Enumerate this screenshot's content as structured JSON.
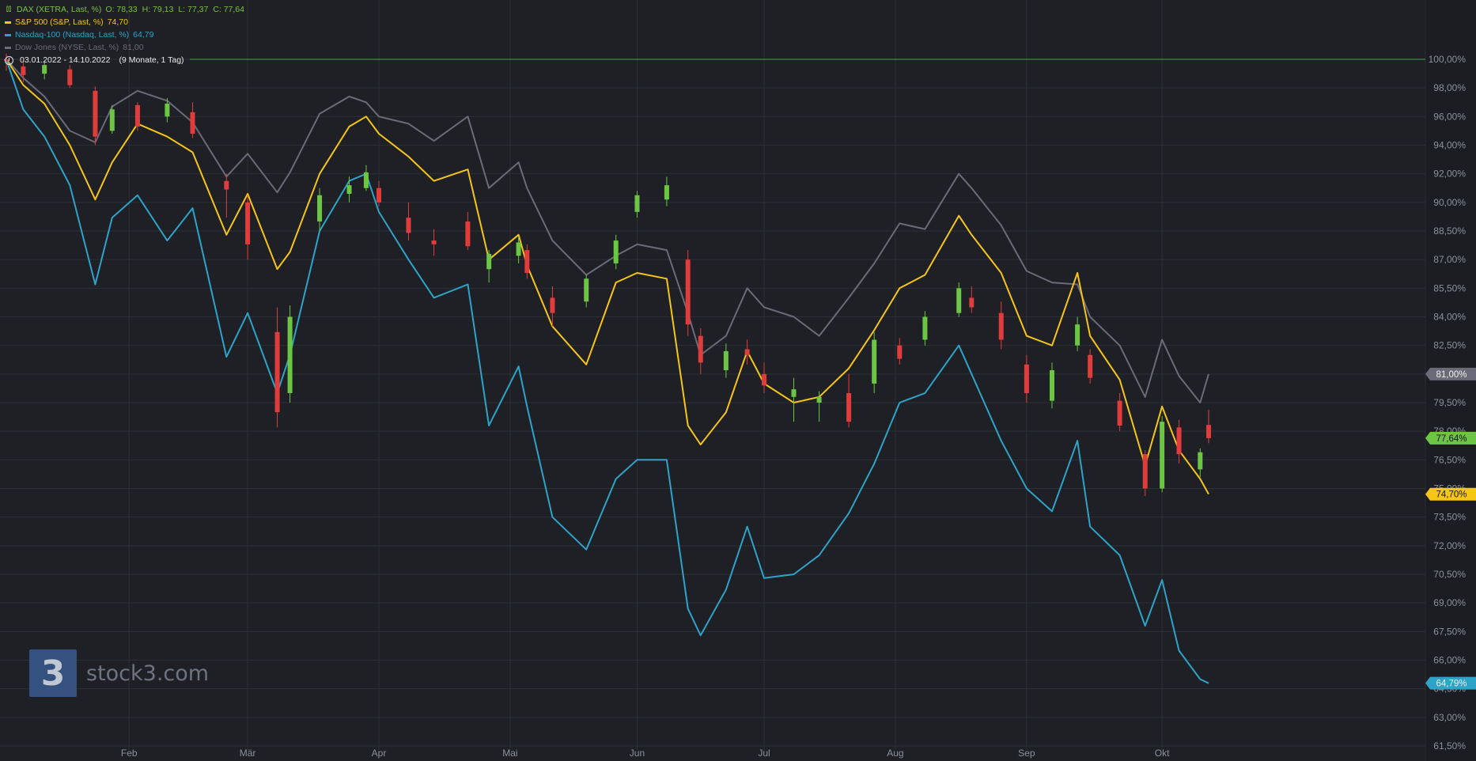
{
  "legend": [
    {
      "label": "DAX (XETRA, Last, %)",
      "values": [
        "O: 78,33",
        "H: 79,13",
        "L: 77,37",
        "C: 77,64"
      ],
      "color": "#7ac143",
      "icon": "candlestick-icon"
    },
    {
      "label": "S&P 500 (S&P, Last, %)",
      "values": [
        "74,70"
      ],
      "color": "#f5c518",
      "icon": "line-icon"
    },
    {
      "label": "Nasdaq-100 (Nasdaq, Last, %)",
      "values": [
        "64,79"
      ],
      "color": "#2ea3c8",
      "icon": "line-icon"
    },
    {
      "label": "Dow Jones (NYSE, Last, %)",
      "values": [
        "81,00"
      ],
      "color": "#6a6a78",
      "icon": "line-icon"
    }
  ],
  "date_range": {
    "text": "03.01.2022 - 14.10.2022",
    "duration": "(9 Monate, 1 Tag)",
    "icon": "clock-icon"
  },
  "watermark": {
    "logo_glyph": "3",
    "text": "stock3.com"
  },
  "colors": {
    "background": "#1e2026",
    "axis_panel": "#1b1d22",
    "grid": "#2c2f36",
    "up": "#6cc644",
    "down": "#e03c3c",
    "reference": "#3d8c3d"
  },
  "chart_data": {
    "type": "line",
    "title": "",
    "xlabel": "",
    "ylabel": "",
    "x_range": [
      "2022-01-03",
      "2022-10-14"
    ],
    "ylim": [
      61.5,
      100.0
    ],
    "y_ticks": [
      "100,00%",
      "98,00%",
      "96,00%",
      "94,00%",
      "92,00%",
      "90,00%",
      "88,50%",
      "87,00%",
      "85,50%",
      "84,00%",
      "82,50%",
      "81,00%",
      "79,50%",
      "78,00%",
      "76,50%",
      "75,00%",
      "73,50%",
      "72,00%",
      "70,50%",
      "69,00%",
      "67,50%",
      "66,00%",
      "64,50%",
      "63,00%",
      "61,50%"
    ],
    "y_tick_values": [
      100,
      98,
      96,
      94,
      92,
      90,
      88.5,
      87,
      85.5,
      84,
      82.5,
      81,
      79.5,
      78,
      76.5,
      75,
      73.5,
      72,
      70.5,
      69,
      67.5,
      66,
      64.5,
      63,
      61.5
    ],
    "x_ticks": [
      {
        "label": "Feb",
        "date": "2022-02-01"
      },
      {
        "label": "Mär",
        "date": "2022-03-01"
      },
      {
        "label": "Apr",
        "date": "2022-04-01"
      },
      {
        "label": "Mai",
        "date": "2022-05-02"
      },
      {
        "label": "Jun",
        "date": "2022-06-01"
      },
      {
        "label": "Jul",
        "date": "2022-07-01"
      },
      {
        "label": "Aug",
        "date": "2022-08-01"
      },
      {
        "label": "Sep",
        "date": "2022-09-01"
      },
      {
        "label": "Okt",
        "date": "2022-10-03"
      }
    ],
    "reference_line": 100.0,
    "grid": true,
    "last_value_badges": [
      {
        "series": "Dow Jones",
        "label": "81,00%",
        "value": 81.0,
        "color": "#6a6a78"
      },
      {
        "series": "DAX",
        "label": "77,64%",
        "value": 77.64,
        "color": "#6cc644"
      },
      {
        "series": "S&P 500",
        "label": "74,70%",
        "value": 74.7,
        "color": "#f5c518"
      },
      {
        "series": "Nasdaq-100",
        "label": "64,79%",
        "value": 64.79,
        "color": "#2ea3c8"
      }
    ],
    "series": [
      {
        "name": "Dow Jones",
        "kind": "line",
        "color": "#6a6a78",
        "x": [
          "2022-01-03",
          "2022-01-07",
          "2022-01-12",
          "2022-01-18",
          "2022-01-24",
          "2022-01-28",
          "2022-02-03",
          "2022-02-10",
          "2022-02-16",
          "2022-02-24",
          "2022-03-01",
          "2022-03-08",
          "2022-03-11",
          "2022-03-18",
          "2022-03-25",
          "2022-03-29",
          "2022-04-01",
          "2022-04-08",
          "2022-04-14",
          "2022-04-22",
          "2022-04-27",
          "2022-05-04",
          "2022-05-06",
          "2022-05-12",
          "2022-05-20",
          "2022-05-27",
          "2022-06-01",
          "2022-06-08",
          "2022-06-13",
          "2022-06-16",
          "2022-06-22",
          "2022-06-27",
          "2022-07-01",
          "2022-07-08",
          "2022-07-14",
          "2022-07-21",
          "2022-07-27",
          "2022-08-02",
          "2022-08-08",
          "2022-08-16",
          "2022-08-19",
          "2022-08-26",
          "2022-09-01",
          "2022-09-07",
          "2022-09-13",
          "2022-09-16",
          "2022-09-23",
          "2022-09-29",
          "2022-10-03",
          "2022-10-07",
          "2022-10-12",
          "2022-10-14"
        ],
        "values": [
          100.0,
          98.7,
          97.4,
          95.0,
          94.2,
          96.7,
          97.8,
          97.1,
          95.6,
          91.8,
          93.4,
          90.7,
          92.1,
          96.2,
          97.4,
          97.0,
          96.0,
          95.5,
          94.3,
          96.0,
          91.0,
          92.8,
          91.0,
          88.0,
          86.2,
          87.2,
          87.8,
          87.5,
          84.2,
          82.0,
          83.0,
          85.5,
          84.5,
          84.0,
          83.0,
          85.0,
          86.8,
          88.9,
          88.6,
          92.0,
          91.0,
          88.8,
          86.4,
          85.8,
          85.7,
          84.0,
          82.5,
          79.8,
          82.8,
          80.9,
          79.5,
          81.0
        ]
      },
      {
        "name": "S&P 500",
        "kind": "line",
        "color": "#f5c518",
        "x": [
          "2022-01-03",
          "2022-01-07",
          "2022-01-12",
          "2022-01-18",
          "2022-01-24",
          "2022-01-28",
          "2022-02-03",
          "2022-02-10",
          "2022-02-16",
          "2022-02-24",
          "2022-03-01",
          "2022-03-08",
          "2022-03-11",
          "2022-03-18",
          "2022-03-25",
          "2022-03-29",
          "2022-04-01",
          "2022-04-08",
          "2022-04-14",
          "2022-04-22",
          "2022-04-27",
          "2022-05-04",
          "2022-05-06",
          "2022-05-12",
          "2022-05-20",
          "2022-05-27",
          "2022-06-01",
          "2022-06-08",
          "2022-06-13",
          "2022-06-16",
          "2022-06-22",
          "2022-06-27",
          "2022-07-01",
          "2022-07-08",
          "2022-07-14",
          "2022-07-21",
          "2022-07-27",
          "2022-08-02",
          "2022-08-08",
          "2022-08-16",
          "2022-08-19",
          "2022-08-26",
          "2022-09-01",
          "2022-09-07",
          "2022-09-13",
          "2022-09-16",
          "2022-09-23",
          "2022-09-29",
          "2022-10-03",
          "2022-10-07",
          "2022-10-12",
          "2022-10-14"
        ],
        "values": [
          100.0,
          98.2,
          96.9,
          94.0,
          90.2,
          92.8,
          95.5,
          94.6,
          93.5,
          88.3,
          90.6,
          86.5,
          87.4,
          92.0,
          95.3,
          96.0,
          94.8,
          93.2,
          91.5,
          92.3,
          87.0,
          88.3,
          86.7,
          83.5,
          81.5,
          85.8,
          86.3,
          86.0,
          78.3,
          77.3,
          79.0,
          82.2,
          80.5,
          79.5,
          79.8,
          81.3,
          83.3,
          85.5,
          86.2,
          89.3,
          88.3,
          86.3,
          83.0,
          82.5,
          86.3,
          83.0,
          80.7,
          76.2,
          79.3,
          77.0,
          75.5,
          74.7
        ]
      },
      {
        "name": "Nasdaq-100",
        "kind": "line",
        "color": "#2ea3c8",
        "x": [
          "2022-01-03",
          "2022-01-07",
          "2022-01-12",
          "2022-01-18",
          "2022-01-24",
          "2022-01-28",
          "2022-02-03",
          "2022-02-10",
          "2022-02-16",
          "2022-02-24",
          "2022-03-01",
          "2022-03-08",
          "2022-03-11",
          "2022-03-18",
          "2022-03-25",
          "2022-03-29",
          "2022-04-01",
          "2022-04-08",
          "2022-04-14",
          "2022-04-22",
          "2022-04-27",
          "2022-05-04",
          "2022-05-06",
          "2022-05-12",
          "2022-05-20",
          "2022-05-27",
          "2022-06-01",
          "2022-06-08",
          "2022-06-13",
          "2022-06-16",
          "2022-06-22",
          "2022-06-27",
          "2022-07-01",
          "2022-07-08",
          "2022-07-14",
          "2022-07-21",
          "2022-07-27",
          "2022-08-02",
          "2022-08-08",
          "2022-08-16",
          "2022-08-19",
          "2022-08-26",
          "2022-09-01",
          "2022-09-07",
          "2022-09-13",
          "2022-09-16",
          "2022-09-23",
          "2022-09-29",
          "2022-10-03",
          "2022-10-07",
          "2022-10-12",
          "2022-10-14"
        ],
        "values": [
          100.0,
          96.5,
          94.6,
          91.2,
          85.7,
          89.2,
          90.5,
          88.0,
          89.7,
          81.9,
          84.2,
          80.0,
          82.0,
          88.5,
          91.5,
          92.0,
          89.5,
          87.0,
          85.0,
          85.7,
          78.3,
          81.4,
          79.3,
          73.5,
          71.8,
          75.5,
          76.5,
          76.5,
          68.7,
          67.3,
          69.7,
          73.0,
          70.3,
          70.5,
          71.5,
          73.7,
          76.3,
          79.5,
          80.0,
          82.5,
          81.0,
          77.5,
          75.0,
          73.8,
          77.5,
          73.0,
          71.5,
          67.8,
          70.2,
          66.5,
          65.0,
          64.79
        ]
      },
      {
        "name": "DAX",
        "kind": "candlestick",
        "up_color": "#6cc644",
        "down_color": "#e03c3c",
        "candles": [
          {
            "x": "2022-01-03",
            "o": 100.0,
            "h": 100.4,
            "l": 99.2,
            "c": 99.9
          },
          {
            "x": "2022-01-07",
            "o": 99.5,
            "h": 99.9,
            "l": 98.4,
            "c": 98.9
          },
          {
            "x": "2022-01-12",
            "o": 99.0,
            "h": 99.9,
            "l": 98.6,
            "c": 99.6
          },
          {
            "x": "2022-01-18",
            "o": 99.3,
            "h": 99.6,
            "l": 98.0,
            "c": 98.2
          },
          {
            "x": "2022-01-24",
            "o": 97.8,
            "h": 98.1,
            "l": 94.0,
            "c": 94.6
          },
          {
            "x": "2022-01-28",
            "o": 95.0,
            "h": 96.8,
            "l": 94.8,
            "c": 96.5
          },
          {
            "x": "2022-02-03",
            "o": 96.8,
            "h": 97.0,
            "l": 95.0,
            "c": 95.3
          },
          {
            "x": "2022-02-10",
            "o": 96.0,
            "h": 97.3,
            "l": 95.6,
            "c": 96.9
          },
          {
            "x": "2022-02-16",
            "o": 96.3,
            "h": 97.0,
            "l": 94.5,
            "c": 94.8
          },
          {
            "x": "2022-02-24",
            "o": 91.5,
            "h": 92.0,
            "l": 89.2,
            "c": 90.9
          },
          {
            "x": "2022-03-01",
            "o": 90.0,
            "h": 90.5,
            "l": 87.0,
            "c": 87.8
          },
          {
            "x": "2022-03-08",
            "o": 83.2,
            "h": 84.5,
            "l": 78.2,
            "c": 79.0
          },
          {
            "x": "2022-03-11",
            "o": 80.0,
            "h": 84.6,
            "l": 79.5,
            "c": 84.0
          },
          {
            "x": "2022-03-18",
            "o": 89.0,
            "h": 91.0,
            "l": 88.5,
            "c": 90.5
          },
          {
            "x": "2022-03-25",
            "o": 90.6,
            "h": 91.8,
            "l": 90.0,
            "c": 91.2
          },
          {
            "x": "2022-03-29",
            "o": 91.0,
            "h": 92.6,
            "l": 90.8,
            "c": 92.1
          },
          {
            "x": "2022-04-01",
            "o": 91.0,
            "h": 91.5,
            "l": 89.8,
            "c": 90.0
          },
          {
            "x": "2022-04-08",
            "o": 89.2,
            "h": 90.0,
            "l": 88.0,
            "c": 88.4
          },
          {
            "x": "2022-04-14",
            "o": 88.0,
            "h": 88.6,
            "l": 87.2,
            "c": 87.8
          },
          {
            "x": "2022-04-22",
            "o": 89.0,
            "h": 89.5,
            "l": 87.5,
            "c": 87.7
          },
          {
            "x": "2022-04-27",
            "o": 86.5,
            "h": 87.5,
            "l": 85.8,
            "c": 87.3
          },
          {
            "x": "2022-05-04",
            "o": 87.2,
            "h": 88.2,
            "l": 86.8,
            "c": 87.9
          },
          {
            "x": "2022-05-06",
            "o": 87.5,
            "h": 87.8,
            "l": 86.0,
            "c": 86.3
          },
          {
            "x": "2022-05-12",
            "o": 85.0,
            "h": 85.6,
            "l": 83.5,
            "c": 84.2
          },
          {
            "x": "2022-05-20",
            "o": 84.8,
            "h": 86.2,
            "l": 84.5,
            "c": 86.0
          },
          {
            "x": "2022-05-27",
            "o": 86.8,
            "h": 88.3,
            "l": 86.5,
            "c": 88.0
          },
          {
            "x": "2022-06-01",
            "o": 89.5,
            "h": 90.8,
            "l": 89.2,
            "c": 90.5
          },
          {
            "x": "2022-06-08",
            "o": 90.2,
            "h": 91.8,
            "l": 89.8,
            "c": 91.2
          },
          {
            "x": "2022-06-13",
            "o": 87.0,
            "h": 87.5,
            "l": 83.0,
            "c": 83.6
          },
          {
            "x": "2022-06-16",
            "o": 83.0,
            "h": 83.4,
            "l": 81.0,
            "c": 81.6
          },
          {
            "x": "2022-06-22",
            "o": 81.2,
            "h": 82.6,
            "l": 80.8,
            "c": 82.2
          },
          {
            "x": "2022-06-27",
            "o": 82.3,
            "h": 82.8,
            "l": 81.5,
            "c": 82.0
          },
          {
            "x": "2022-07-01",
            "o": 81.0,
            "h": 81.6,
            "l": 80.0,
            "c": 80.4
          },
          {
            "x": "2022-07-08",
            "o": 79.8,
            "h": 80.8,
            "l": 78.5,
            "c": 80.2
          },
          {
            "x": "2022-07-14",
            "o": 79.5,
            "h": 80.1,
            "l": 78.5,
            "c": 79.8
          },
          {
            "x": "2022-07-21",
            "o": 80.0,
            "h": 81.0,
            "l": 78.2,
            "c": 78.5
          },
          {
            "x": "2022-07-27",
            "o": 80.5,
            "h": 83.2,
            "l": 80.0,
            "c": 82.8
          },
          {
            "x": "2022-08-02",
            "o": 82.5,
            "h": 82.9,
            "l": 81.5,
            "c": 81.8
          },
          {
            "x": "2022-08-08",
            "o": 82.8,
            "h": 84.3,
            "l": 82.5,
            "c": 84.0
          },
          {
            "x": "2022-08-16",
            "o": 84.2,
            "h": 85.8,
            "l": 84.0,
            "c": 85.5
          },
          {
            "x": "2022-08-19",
            "o": 85.0,
            "h": 85.6,
            "l": 84.2,
            "c": 84.5
          },
          {
            "x": "2022-08-26",
            "o": 84.2,
            "h": 84.8,
            "l": 82.3,
            "c": 82.8
          },
          {
            "x": "2022-09-01",
            "o": 81.5,
            "h": 82.0,
            "l": 79.5,
            "c": 80.0
          },
          {
            "x": "2022-09-07",
            "o": 79.6,
            "h": 81.6,
            "l": 79.2,
            "c": 81.2
          },
          {
            "x": "2022-09-13",
            "o": 82.5,
            "h": 84.0,
            "l": 82.2,
            "c": 83.6
          },
          {
            "x": "2022-09-16",
            "o": 82.0,
            "h": 82.3,
            "l": 80.5,
            "c": 80.8
          },
          {
            "x": "2022-09-23",
            "o": 79.6,
            "h": 80.0,
            "l": 78.0,
            "c": 78.3
          },
          {
            "x": "2022-09-29",
            "o": 76.8,
            "h": 77.0,
            "l": 74.6,
            "c": 75.0
          },
          {
            "x": "2022-10-03",
            "o": 75.0,
            "h": 78.8,
            "l": 74.8,
            "c": 78.5
          },
          {
            "x": "2022-10-07",
            "o": 78.2,
            "h": 78.6,
            "l": 76.3,
            "c": 76.8
          },
          {
            "x": "2022-10-12",
            "o": 76.0,
            "h": 77.1,
            "l": 75.6,
            "c": 76.9
          },
          {
            "x": "2022-10-14",
            "o": 78.33,
            "h": 79.13,
            "l": 77.37,
            "c": 77.64
          }
        ]
      }
    ]
  }
}
